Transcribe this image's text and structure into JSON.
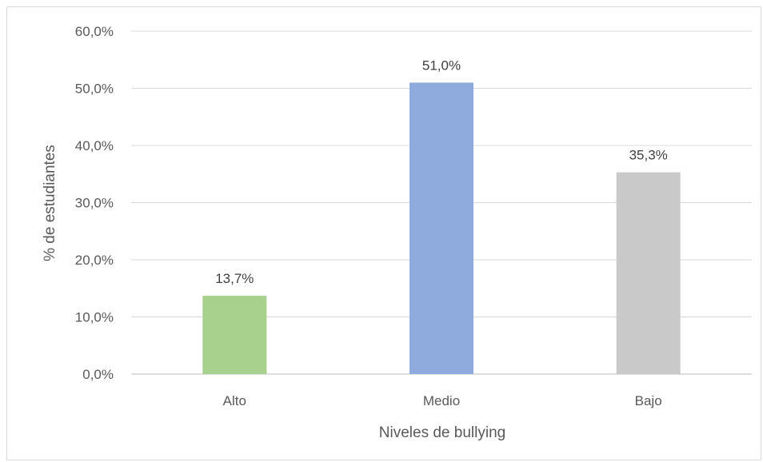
{
  "chart_data": {
    "type": "bar",
    "title": "",
    "xlabel": "Niveles de bullying",
    "ylabel": "% de estudiantes",
    "ylim": [
      0,
      60
    ],
    "ytick_step": 10,
    "ytick_labels": [
      "0,0%",
      "10,0%",
      "20,0%",
      "30,0%",
      "40,0%",
      "50,0%",
      "60,0%"
    ],
    "grid": true,
    "legend": "none",
    "categories": [
      "Alto",
      "Medio",
      "Bajo"
    ],
    "values": [
      13.7,
      51.0,
      35.3
    ],
    "data_labels": [
      "13,7%",
      "51,0%",
      "35,3%"
    ],
    "colors": [
      "#a9d18e",
      "#8faadc",
      "#c9c9c9"
    ]
  }
}
